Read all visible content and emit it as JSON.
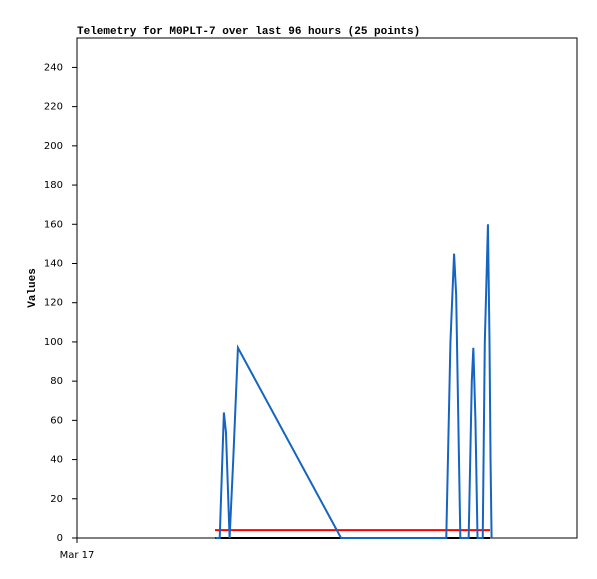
{
  "chart_data": {
    "type": "line",
    "title": "Telemetry for M0PLT-7 over last 96 hours (25 points)",
    "y_label": "Values",
    "xlim": [
      0,
      96
    ],
    "xticks": [
      {
        "value": 0,
        "label": "Mar 17"
      }
    ],
    "ylim": [
      0,
      255
    ],
    "yticks": [
      0,
      20,
      40,
      60,
      80,
      100,
      120,
      140,
      160,
      180,
      200,
      220,
      240
    ],
    "series": [
      {
        "color": "#000000",
        "x": [
          26.5,
          79.3
        ],
        "values": [
          0,
          0
        ]
      },
      {
        "color": "#ff0000",
        "x": [
          26.5,
          79.3
        ],
        "values": [
          4,
          4
        ]
      },
      {
        "color": "#1565c0",
        "x": [
          26.6,
          27.4,
          28.2,
          28.6,
          29.3,
          30.0,
          30.9,
          50.7,
          70.9,
          71.7,
          72.4,
          72.8,
          73.6,
          75.2,
          75.8,
          76.1,
          76.5,
          76.9,
          77.9,
          78.3,
          78.6,
          78.9,
          79.2,
          79.4,
          79.6
        ],
        "values": [
          0,
          0,
          64,
          54,
          0,
          40,
          97,
          0,
          0,
          100,
          145,
          124,
          0,
          0,
          80,
          97,
          60,
          0,
          0,
          100,
          130,
          160,
          100,
          40,
          0
        ]
      }
    ]
  }
}
